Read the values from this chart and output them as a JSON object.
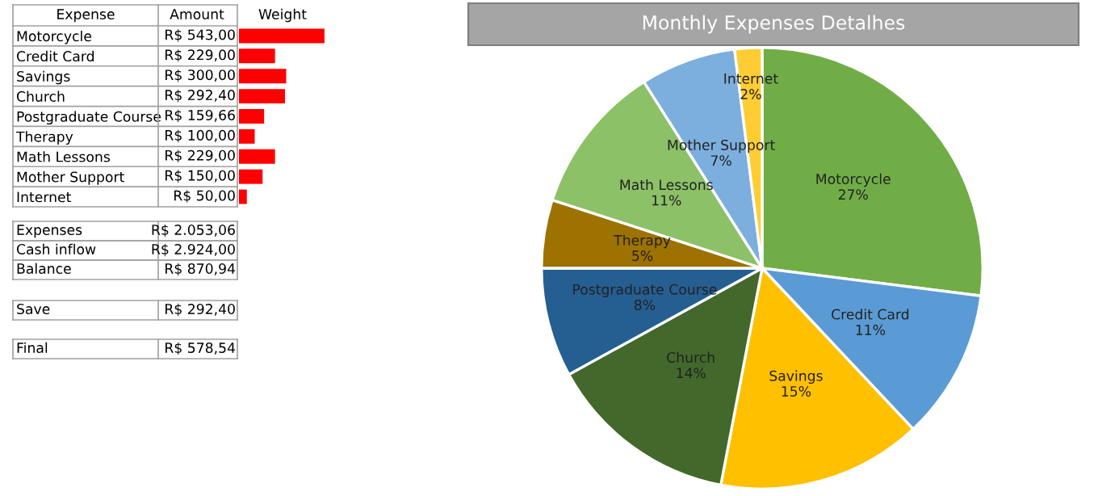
{
  "chart_data": [
    {
      "type": "bar",
      "orientation": "horizontal",
      "categories": [
        "Motorcycle",
        "Credit Card",
        "Savings",
        "Church",
        "Postgraduate Course",
        "Therapy",
        "Math Lessons",
        "Mother Support",
        "Internet"
      ],
      "values": [
        543.0,
        229.0,
        300.0,
        292.4,
        159.66,
        100.0,
        229.0,
        150.0,
        50.0
      ],
      "value_labels": [
        "R$ 543,00",
        "R$ 229,00",
        "R$ 300,00",
        "R$ 292,40",
        "R$ 159,66",
        "R$ 100,00",
        "R$ 229,00",
        "R$ 150,00",
        "R$ 50,00"
      ],
      "color": "#ff0000",
      "annotations": [
        "Expense",
        "Amount",
        "Weight"
      ]
    },
    {
      "type": "other",
      "annotations": [
        "Expenses",
        "R$ 2.053,06",
        "Cash inflow",
        "R$ 2.924,00",
        "Balance",
        "R$ 870,94",
        "Save",
        "R$ 292,40",
        "Final",
        "R$ 578,54"
      ]
    },
    {
      "type": "pie",
      "title": "Monthly Expenses Detalhes",
      "categories": [
        "Motorcycle",
        "Credit Card",
        "Savings",
        "Church",
        "Postgraduate Course",
        "Therapy",
        "Math Lessons",
        "Mother Support",
        "Internet"
      ],
      "values": [
        27,
        11,
        15,
        14,
        8,
        5,
        11,
        7,
        2
      ],
      "value_labels": [
        "27%",
        "11%",
        "15%",
        "14%",
        "8%",
        "5%",
        "11%",
        "7%",
        "2%"
      ],
      "colors": [
        "#70ad47",
        "#5b9bd5",
        "#ffc000",
        "#43682b",
        "#255e91",
        "#9e7200",
        "#8cc168",
        "#7cafdd",
        "#ffcd33"
      ]
    }
  ]
}
